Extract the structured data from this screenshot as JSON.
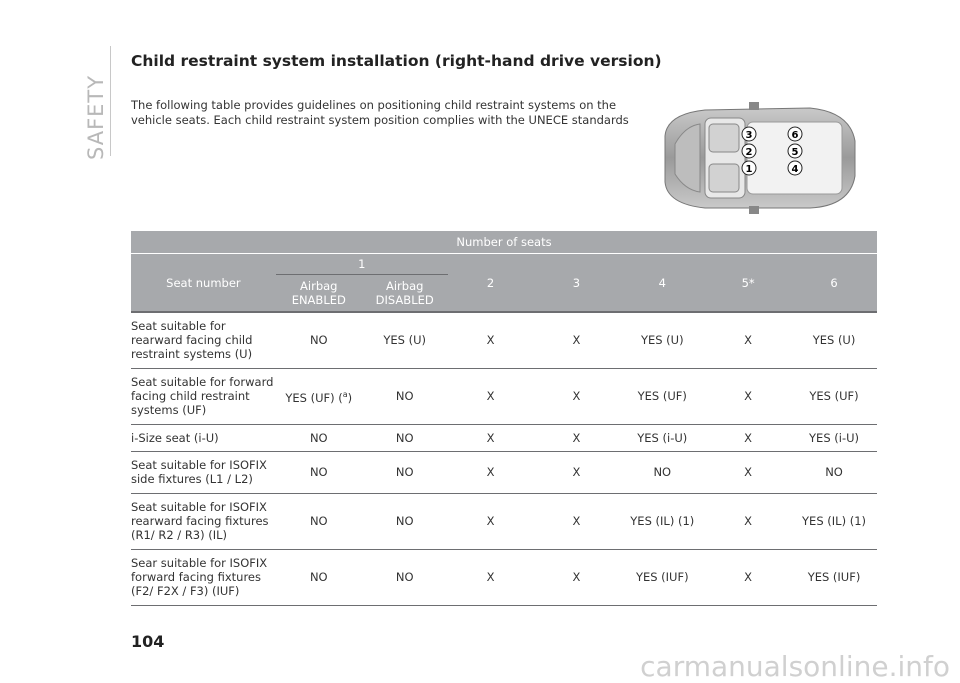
{
  "section_label": "SAFETY",
  "title": "Child restraint system installation (right-hand drive version)",
  "intro": "The following table provides guidelines on positioning child restraint systems on the vehicle seats. Each child restraint system position complies with the UNECE standards",
  "diagram_seat_numbers": [
    "3",
    "6",
    "2",
    "5",
    "1",
    "4"
  ],
  "table": {
    "group_header": "Number of seats",
    "seat_number_label": "Seat number",
    "seat1_label": "1",
    "airbag_enabled": "Airbag ENABLED",
    "airbag_disabled": "Airbag DISABLED",
    "cols": [
      "2",
      "3",
      "4",
      "5*",
      "6"
    ],
    "rows": [
      {
        "label": "Seat suitable for rearward facing child restraint systems (U)",
        "cells": [
          "NO",
          "YES (U)",
          "X",
          "X",
          "YES (U)",
          "X",
          "YES (U)"
        ]
      },
      {
        "label": "Seat suitable for forward facing child restraint systems (UF)",
        "cells": [
          "YES (UF) (",
          "NO",
          "X",
          "X",
          "YES (UF)",
          "X",
          "YES (UF)"
        ]
      },
      {
        "label": "i-Size seat (i-U)",
        "cells": [
          "NO",
          "NO",
          "X",
          "X",
          "YES (i-U)",
          "X",
          "YES (i-U)"
        ]
      },
      {
        "label": "Seat suitable for ISOFIX side fixtures (L1 / L2)",
        "cells": [
          "NO",
          "NO",
          "X",
          "X",
          "NO",
          "X",
          "NO"
        ]
      },
      {
        "label": "Seat suitable for ISOFIX rearward facing fixtures (R1/ R2 / R3) (IL)",
        "cells": [
          "NO",
          "NO",
          "X",
          "X",
          "YES (IL) (1)",
          "X",
          "YES (IL) (1)"
        ]
      },
      {
        "label": "Sear suitable for ISOFIX forward facing fixtures (F2/ F2X / F3) (IUF)",
        "cells": [
          "NO",
          "NO",
          "X",
          "X",
          "YES (IUF)",
          "X",
          "YES (IUF)"
        ]
      }
    ],
    "uf_note_symbol": "a",
    "uf_note_close": ")"
  },
  "page_number": "104",
  "watermark": "carmanualsonline.info"
}
